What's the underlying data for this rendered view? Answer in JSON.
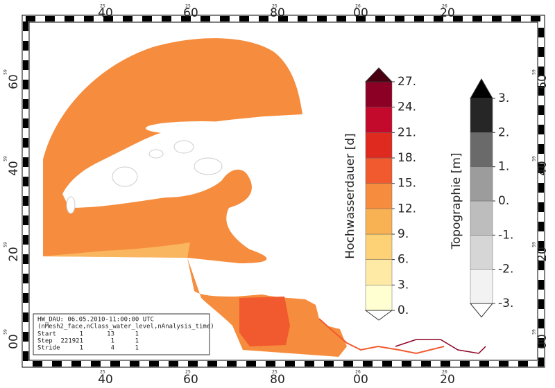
{
  "frame": {
    "lon_labels": [
      {
        "major": "40",
        "minor": "25"
      },
      {
        "major": "60",
        "minor": "25"
      },
      {
        "major": "80",
        "minor": "25"
      },
      {
        "major": "00",
        "minor": "26"
      },
      {
        "major": "20",
        "minor": "26"
      }
    ],
    "lat_labels": [
      {
        "major": "60",
        "minor": "59"
      },
      {
        "major": "40",
        "minor": "59"
      },
      {
        "major": "20",
        "minor": "59"
      },
      {
        "major": "00",
        "minor": "59"
      }
    ]
  },
  "colorbars": [
    {
      "title": "Hochwasserdauer [d]",
      "levels": [
        {
          "value": 0,
          "label": "0."
        },
        {
          "value": 3,
          "label": "3."
        },
        {
          "value": 6,
          "label": "6."
        },
        {
          "value": 9,
          "label": "9."
        },
        {
          "value": 12,
          "label": "12."
        },
        {
          "value": 15,
          "label": "15."
        },
        {
          "value": 18,
          "label": "18."
        },
        {
          "value": 21,
          "label": "21."
        },
        {
          "value": 24,
          "label": "24."
        },
        {
          "value": 27,
          "label": "27."
        }
      ],
      "colors": [
        "#ffffd2",
        "#feeaa4",
        "#fdd276",
        "#f9b253",
        "#f68d3e",
        "#f15a2e",
        "#df2a20",
        "#c40a2c",
        "#8b0024"
      ],
      "under_color": "#ffffff",
      "over_color": "#4a0010"
    },
    {
      "title": "Topographie [m]",
      "levels": [
        {
          "value": -3,
          "label": "-3."
        },
        {
          "value": -2,
          "label": "-2."
        },
        {
          "value": -1,
          "label": "-1."
        },
        {
          "value": 0,
          "label": "0."
        },
        {
          "value": 1,
          "label": "1."
        },
        {
          "value": 2,
          "label": "2."
        },
        {
          "value": 3,
          "label": "3."
        }
      ],
      "colors": [
        "#f2f2f2",
        "#d6d6d6",
        "#bdbdbd",
        "#9c9c9c",
        "#6a6a6a",
        "#262626"
      ],
      "under_color": "#ffffff",
      "over_color": "#000000"
    }
  ],
  "info_box": {
    "lines": [
      "HW_DAU: 06.05.2010-11:00:00 UTC",
      "(nMesh2_face,nClass_water_level,nAnalysis_time)"
    ],
    "rows": [
      [
        "Start",
        "1",
        "13",
        "1"
      ],
      [
        "Step",
        "221921",
        "1",
        "1"
      ],
      [
        "Stride",
        "1",
        "4",
        "1"
      ]
    ]
  }
}
